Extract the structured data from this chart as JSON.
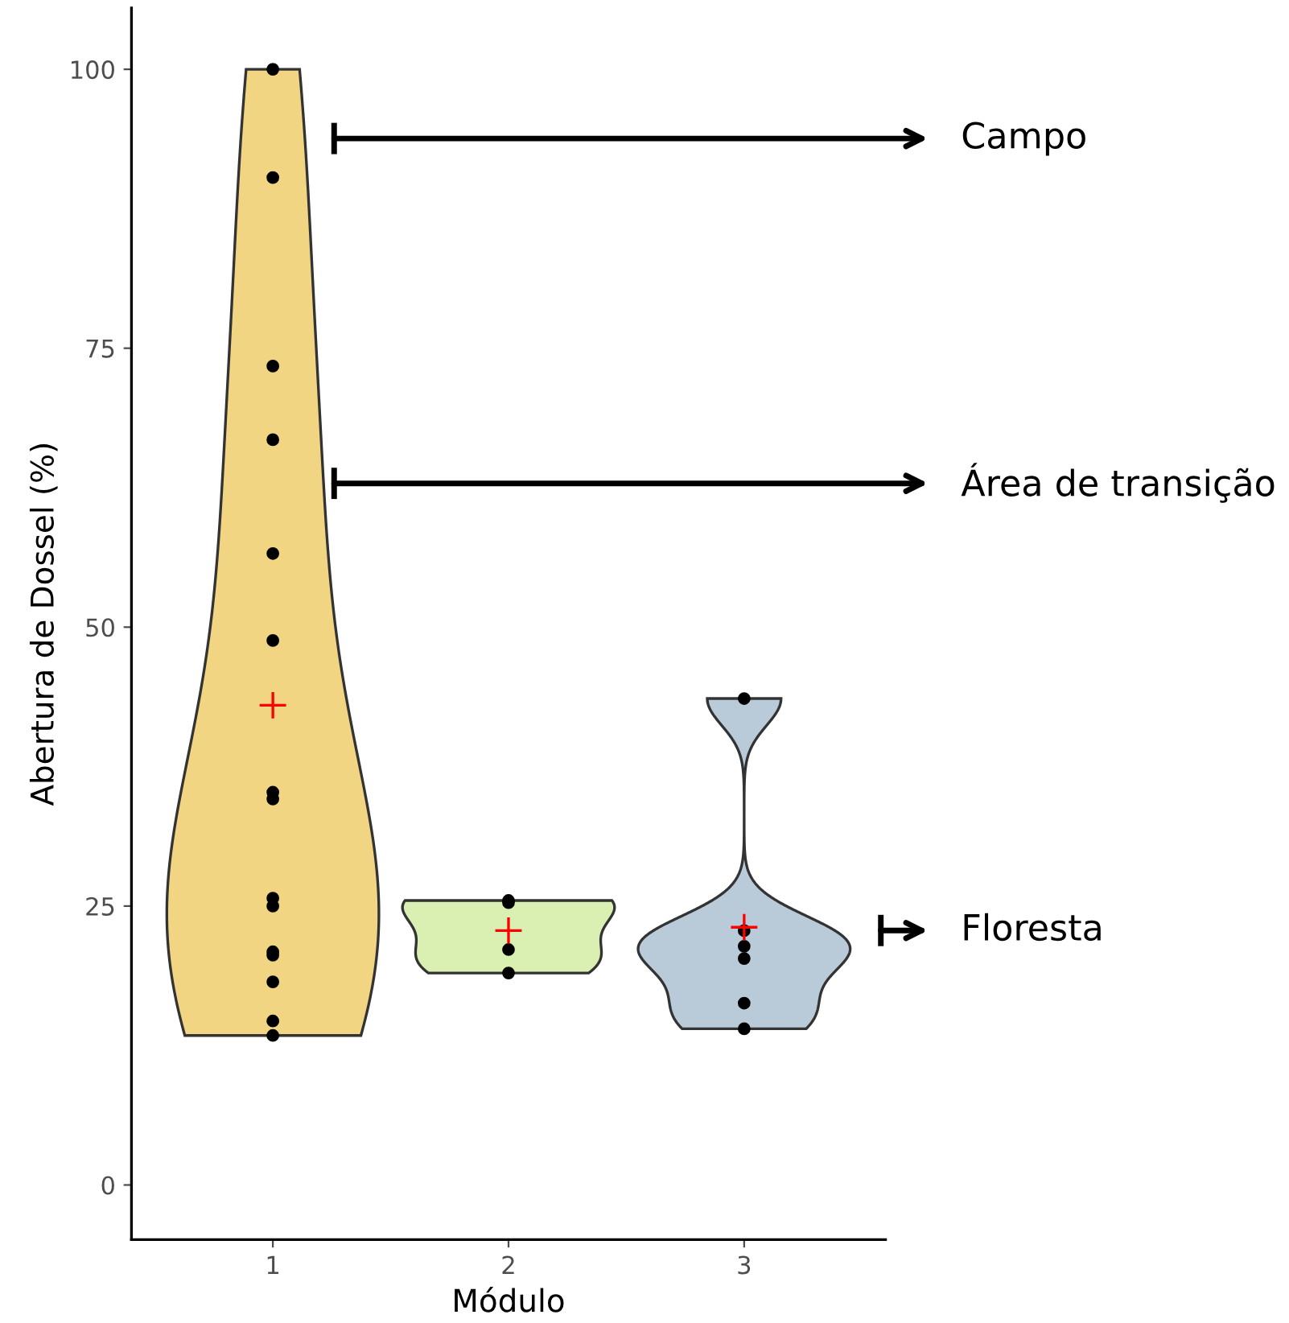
{
  "chart_data": {
    "type": "scatter",
    "xlabel": "Módulo",
    "ylabel": "Abertura de Dossel (%)",
    "categories": [
      "1",
      "2",
      "3"
    ],
    "colors": [
      "#f1d582",
      "#d9f0b2",
      "#b9cad8"
    ],
    "ylim": [
      -4.9,
      105.5
    ],
    "yticks": [
      0,
      25,
      50,
      75,
      100
    ],
    "legend": false,
    "series": [
      {
        "type": "scatter",
        "marker": "circle",
        "color": "#000000",
        "x": [
          "1",
          "1",
          "1",
          "1",
          "1",
          "1",
          "1",
          "1",
          "1",
          "1",
          "1",
          "1",
          "1",
          "1",
          "1",
          "2",
          "2",
          "2",
          "2",
          "3",
          "3",
          "3",
          "3",
          "3",
          "3"
        ],
        "values": [
          100,
          90.3,
          73.4,
          66.8,
          56.6,
          48.8,
          35.2,
          34.6,
          25.7,
          25.0,
          20.9,
          20.6,
          18.2,
          14.7,
          13.4,
          25.3,
          25.5,
          21.1,
          19.0,
          43.6,
          22.8,
          21.4,
          20.3,
          16.3,
          14.0
        ]
      },
      {
        "type": "scatter",
        "marker": "cross",
        "color": "#ff0000",
        "x": [
          "1",
          "2",
          "3"
        ],
        "values": [
          43.0,
          22.8,
          23.1
        ]
      }
    ],
    "annotations": [
      "Campo",
      "Área de transição",
      "Floresta"
    ]
  }
}
